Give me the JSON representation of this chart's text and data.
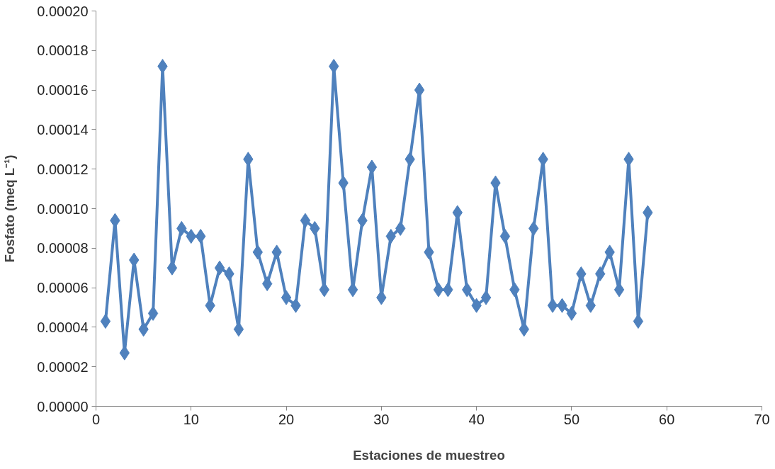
{
  "chart_data": {
    "type": "line",
    "xlabel": "Estaciones de muestreo",
    "ylabel": "Fosfato (meq L⁻¹)",
    "x": [
      1,
      2,
      3,
      4,
      5,
      6,
      7,
      8,
      9,
      10,
      11,
      12,
      13,
      14,
      15,
      16,
      17,
      18,
      19,
      20,
      21,
      22,
      23,
      24,
      25,
      26,
      27,
      28,
      29,
      30,
      31,
      32,
      33,
      34,
      35,
      36,
      37,
      38,
      39,
      40,
      41,
      42,
      43,
      44,
      45,
      46,
      47,
      48,
      49,
      50,
      51,
      52,
      53,
      54,
      55,
      56,
      57,
      58
    ],
    "series": [
      {
        "color": "#4f81bd",
        "values": [
          4.3e-05,
          9.4e-05,
          2.7e-05,
          7.4e-05,
          3.9e-05,
          4.7e-05,
          0.000172,
          7e-05,
          9e-05,
          8.6e-05,
          8.6e-05,
          5.1e-05,
          7e-05,
          6.7e-05,
          3.9e-05,
          0.000125,
          7.8e-05,
          6.2e-05,
          7.8e-05,
          5.5e-05,
          5.1e-05,
          9.4e-05,
          9e-05,
          5.9e-05,
          0.000172,
          0.000113,
          5.9e-05,
          9.4e-05,
          0.000121,
          5.5e-05,
          8.6e-05,
          9e-05,
          0.000125,
          0.00016,
          7.8e-05,
          5.9e-05,
          5.9e-05,
          9.8e-05,
          5.9e-05,
          5.1e-05,
          5.5e-05,
          0.000113,
          8.6e-05,
          5.9e-05,
          3.9e-05,
          9e-05,
          0.000125,
          5.1e-05,
          5.1e-05,
          4.7e-05,
          6.7e-05,
          5.1e-05,
          6.7e-05,
          7.8e-05,
          5.9e-05,
          0.000125,
          4.3e-05,
          9.8e-05
        ]
      }
    ],
    "xlim": [
      0,
      70
    ],
    "xticks": [
      0,
      10,
      20,
      30,
      40,
      50,
      60,
      70
    ],
    "ylim": [
      0,
      0.0002
    ],
    "yticks": [
      {
        "value": 0,
        "label": "0.00000"
      },
      {
        "value": 2e-05,
        "label": "0.00002"
      },
      {
        "value": 4e-05,
        "label": "0.00004"
      },
      {
        "value": 6e-05,
        "label": "0.00006"
      },
      {
        "value": 8e-05,
        "label": "0.00008"
      },
      {
        "value": 0.0001,
        "label": "0.00010"
      },
      {
        "value": 0.00012,
        "label": "0.00012"
      },
      {
        "value": 0.00014,
        "label": "0.00014"
      },
      {
        "value": 0.00016,
        "label": "0.00016"
      },
      {
        "value": 0.00018,
        "label": "0.00018"
      },
      {
        "value": 0.0002,
        "label": "0.00020"
      }
    ],
    "marker": "diamond",
    "line_style": "solid",
    "grid": false
  }
}
